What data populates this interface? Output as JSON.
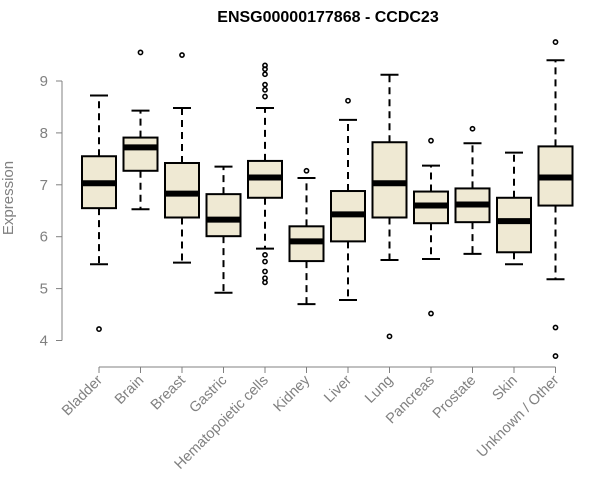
{
  "chart_data": {
    "type": "boxplot",
    "title": "ENSG00000177868 - CCDC23",
    "xlabel": "",
    "ylabel": "Expression",
    "ylim": [
      3.6,
      9.8
    ],
    "yticks": [
      4,
      5,
      6,
      7,
      8,
      9
    ],
    "box_fill": "#efe9d3",
    "box_stroke": "#000000",
    "categories": [
      "Bladder",
      "Brain",
      "Breast",
      "Gastric",
      "Hematopoietic cells",
      "Kidney",
      "Liver",
      "Lung",
      "Pancreas",
      "Prostate",
      "Skin",
      "Unknown / Other"
    ],
    "boxes": [
      {
        "whisker_low": 5.47,
        "q1": 6.55,
        "median": 7.03,
        "q3": 7.55,
        "whisker_high": 8.72,
        "outliers": [
          4.22
        ]
      },
      {
        "whisker_low": 6.53,
        "q1": 7.27,
        "median": 7.72,
        "q3": 7.91,
        "whisker_high": 8.43,
        "outliers": [
          9.55
        ]
      },
      {
        "whisker_low": 5.5,
        "q1": 6.37,
        "median": 6.83,
        "q3": 7.42,
        "whisker_high": 8.48,
        "outliers": [
          9.5
        ]
      },
      {
        "whisker_low": 4.92,
        "q1": 6.01,
        "median": 6.33,
        "q3": 6.82,
        "whisker_high": 7.35,
        "outliers": []
      },
      {
        "whisker_low": 5.77,
        "q1": 6.75,
        "median": 7.14,
        "q3": 7.46,
        "whisker_high": 8.48,
        "outliers": [
          9.3,
          9.23,
          9.13,
          8.93,
          8.83,
          8.7,
          5.65,
          5.52,
          5.33,
          5.2,
          5.12
        ]
      },
      {
        "whisker_low": 4.7,
        "q1": 5.53,
        "median": 5.91,
        "q3": 6.2,
        "whisker_high": 7.13,
        "outliers": [
          7.27
        ]
      },
      {
        "whisker_low": 4.78,
        "q1": 5.91,
        "median": 6.43,
        "q3": 6.88,
        "whisker_high": 8.25,
        "outliers": [
          8.62
        ]
      },
      {
        "whisker_low": 5.55,
        "q1": 6.37,
        "median": 7.03,
        "q3": 7.82,
        "whisker_high": 9.12,
        "outliers": [
          4.08
        ]
      },
      {
        "whisker_low": 5.57,
        "q1": 6.26,
        "median": 6.6,
        "q3": 6.87,
        "whisker_high": 7.37,
        "outliers": [
          7.85,
          4.52
        ]
      },
      {
        "whisker_low": 5.67,
        "q1": 6.28,
        "median": 6.62,
        "q3": 6.93,
        "whisker_high": 7.8,
        "outliers": [
          8.08
        ]
      },
      {
        "whisker_low": 5.47,
        "q1": 5.7,
        "median": 6.3,
        "q3": 6.75,
        "whisker_high": 7.62,
        "outliers": []
      },
      {
        "whisker_low": 5.18,
        "q1": 6.6,
        "median": 7.14,
        "q3": 7.74,
        "whisker_high": 9.4,
        "outliers": [
          9.75,
          4.25,
          3.7
        ]
      }
    ]
  }
}
